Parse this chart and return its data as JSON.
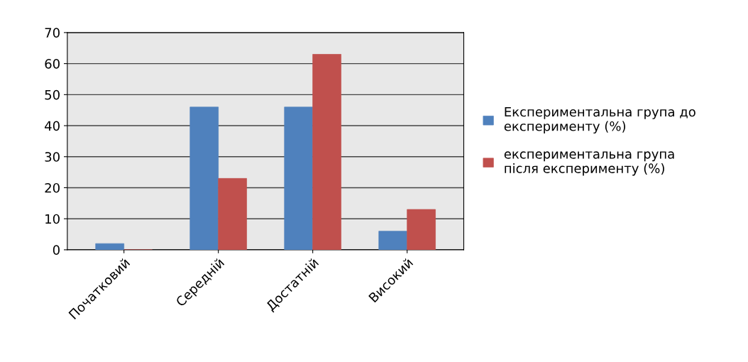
{
  "chart_data": {
    "type": "bar",
    "categories": [
      "Початковий",
      "Середній",
      "Достатній",
      "Високий"
    ],
    "series": [
      {
        "name": "Експериментальна група до експерименту (%)",
        "color": "#4f81bd",
        "values": [
          2,
          46,
          46,
          6
        ]
      },
      {
        "name": "експериментальна група після експерименту (%)",
        "color": "#c0504d",
        "values": [
          0,
          23,
          63,
          13
        ]
      }
    ],
    "ylim": [
      0,
      70
    ],
    "yticks": [
      0,
      10,
      20,
      30,
      40,
      50,
      60,
      70
    ],
    "grid": "y",
    "legend": "right"
  }
}
